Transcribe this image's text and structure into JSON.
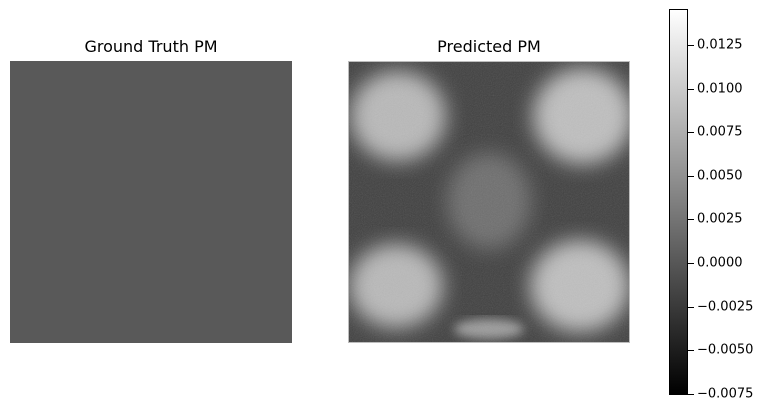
{
  "chart_data": [
    {
      "type": "heatmap",
      "title": "Ground Truth PM",
      "colormap": "gray",
      "uniform_value": 0.0,
      "fill_color": "#595959"
    },
    {
      "type": "heatmap",
      "title": "Predicted PM",
      "colormap": "gray",
      "description_free": true,
      "blobs": [
        {
          "region": "top-left",
          "level": 0.0085
        },
        {
          "region": "top-right",
          "level": 0.009
        },
        {
          "region": "bottom-left",
          "level": 0.0085
        },
        {
          "region": "bottom-right",
          "level": 0.009
        },
        {
          "region": "center",
          "level": 0.002
        },
        {
          "region": "bottom-center",
          "level": 0.006
        }
      ],
      "background_level": -0.002
    }
  ],
  "colorbar": {
    "vmin": -0.0075,
    "vmax": 0.0145,
    "ticks": [
      -0.0075,
      -0.005,
      -0.0025,
      0.0,
      0.0025,
      0.005,
      0.0075,
      0.01,
      0.0125
    ],
    "tick_labels": [
      "−0.0075",
      "−0.0050",
      "−0.0025",
      "0.0000",
      "0.0025",
      "0.0050",
      "0.0075",
      "0.0100",
      "0.0125"
    ]
  }
}
